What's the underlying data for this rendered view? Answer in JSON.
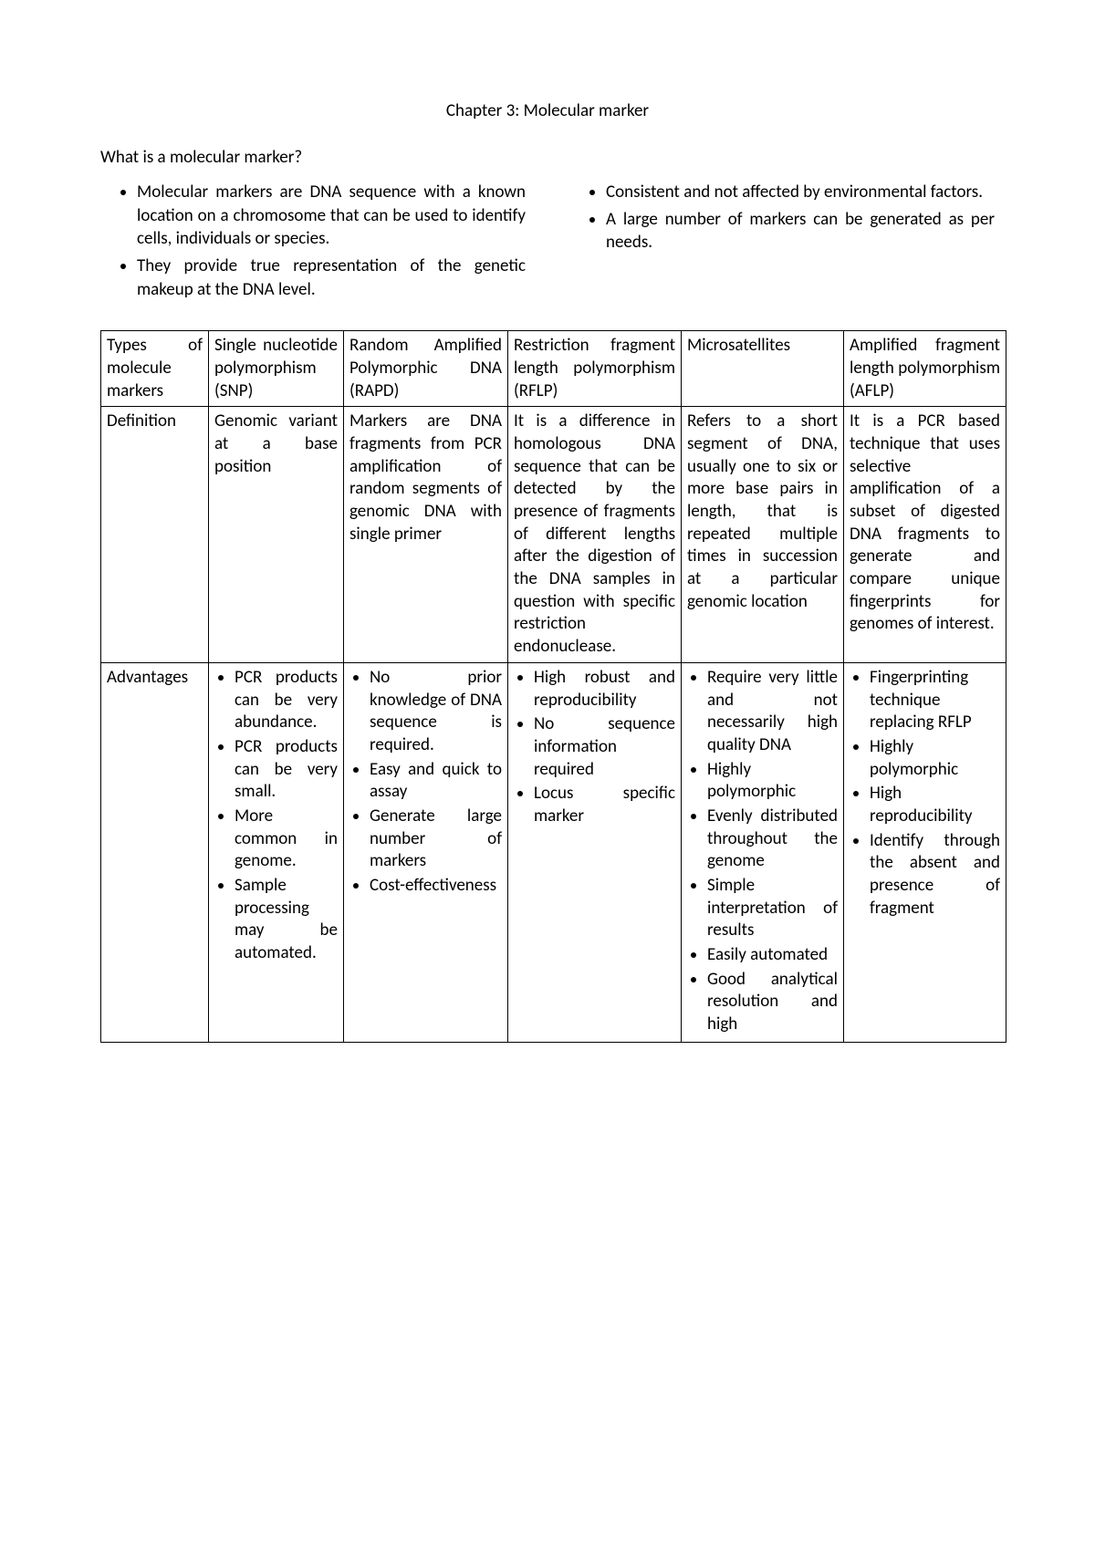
{
  "title": "Chapter 3: Molecular marker",
  "subheading": "What is a molecular marker?",
  "left_bullets": [
    "Molecular markers are DNA sequence with a known location on a chromosome that can be used to identify cells, individuals or species.",
    "They provide true representation of the genetic makeup at the DNA level."
  ],
  "right_bullets": [
    "Consistent and not affected by environmental factors.",
    "A large number of markers can be generated as per needs."
  ],
  "table": {
    "row_headers": [
      "Types of molecule markers",
      "Definition",
      "Advantages"
    ],
    "cols": [
      {
        "type": "Single nucleotide polymorphism (SNP)",
        "definition": "Genomic variant at a base position",
        "advantages": [
          "PCR products can be very abundance.",
          "PCR products can be very small.",
          "More common in genome.",
          "Sample processing may be automated."
        ]
      },
      {
        "type": "Random Amplified Polymorphic DNA (RAPD)",
        "definition": "Markers are DNA fragments from PCR amplification of random segments of genomic DNA with single primer",
        "advantages": [
          "No prior knowledge of DNA sequence is required.",
          "Easy and quick to assay",
          "Generate large number of markers",
          "Cost-effectiveness"
        ]
      },
      {
        "type": "Restriction fragment length polymorphism (RFLP)",
        "definition": "It is a difference in homologous DNA sequence that can be detected by the presence of fragments of different lengths after the digestion of the DNA samples in question with specific restriction endonuclease.",
        "advantages": [
          "High robust and reproducibility",
          "No sequence information required",
          "Locus specific marker"
        ]
      },
      {
        "type": "Microsatellites",
        "definition": "Refers to a short segment of DNA, usually one to six or more base pairs in length, that is repeated multiple times in succession at a particular genomic location",
        "advantages": [
          "Require very little and not necessarily high quality DNA",
          "Highly polymorphic",
          "Evenly distributed throughout the genome",
          "Simple interpretation of results",
          "Easily automated",
          "Good analytical resolution and high"
        ]
      },
      {
        "type": "Amplified fragment length polymorphism (AFLP)",
        "definition": "It is a PCR based technique that uses selective amplification of a subset of digested DNA fragments to generate and compare unique fingerprints for genomes of interest.",
        "advantages": [
          "Fingerprinting technique replacing RFLP",
          "Highly polymorphic",
          "High reproducibility",
          "Identify through the absent and presence of fragment"
        ]
      }
    ]
  }
}
